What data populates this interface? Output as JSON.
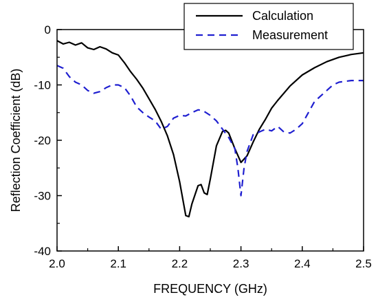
{
  "chart_data": {
    "type": "line",
    "title": "",
    "xlabel": "FREQUENCY (GHz)",
    "ylabel": "Reflection Coefficient (dB)",
    "xlim": [
      2.0,
      2.5
    ],
    "ylim": [
      -40,
      0
    ],
    "xticks": [
      2.0,
      2.1,
      2.2,
      2.3,
      2.4,
      2.5
    ],
    "xtick_labels": [
      "2.0",
      "2.1",
      "2.2",
      "2.3",
      "2.4",
      "2.5"
    ],
    "yticks": [
      0,
      -10,
      -20,
      -30,
      -40
    ],
    "ytick_labels": [
      "0",
      "-10",
      "-20",
      "-30",
      "-40"
    ],
    "grid": false,
    "legend_position": "top-right",
    "series": [
      {
        "name": "Calculation",
        "color": "#000000",
        "dash": "solid",
        "x": [
          2.0,
          2.01,
          2.02,
          2.03,
          2.04,
          2.05,
          2.06,
          2.07,
          2.08,
          2.09,
          2.1,
          2.11,
          2.12,
          2.13,
          2.14,
          2.15,
          2.16,
          2.17,
          2.18,
          2.19,
          2.2,
          2.21,
          2.215,
          2.22,
          2.23,
          2.235,
          2.24,
          2.245,
          2.25,
          2.26,
          2.27,
          2.275,
          2.28,
          2.29,
          2.3,
          2.31,
          2.32,
          2.33,
          2.34,
          2.35,
          2.36,
          2.38,
          2.4,
          2.42,
          2.44,
          2.46,
          2.48,
          2.5
        ],
        "y": [
          -2.0,
          -2.6,
          -2.3,
          -2.8,
          -2.4,
          -3.3,
          -3.6,
          -3.1,
          -3.5,
          -4.2,
          -4.6,
          -6.0,
          -7.6,
          -9.0,
          -10.6,
          -12.5,
          -14.4,
          -16.6,
          -19.2,
          -22.6,
          -27.5,
          -33.6,
          -33.8,
          -31.5,
          -28.2,
          -28.0,
          -29.5,
          -29.8,
          -27.0,
          -21.0,
          -18.4,
          -18.2,
          -18.7,
          -21.5,
          -24.0,
          -22.8,
          -20.3,
          -18.0,
          -16.2,
          -14.2,
          -12.8,
          -10.2,
          -8.2,
          -6.9,
          -5.8,
          -5.0,
          -4.5,
          -4.2
        ]
      },
      {
        "name": "Measurement",
        "color": "#1f1fd0",
        "dash": "dashed",
        "x": [
          2.0,
          2.01,
          2.02,
          2.03,
          2.04,
          2.05,
          2.06,
          2.07,
          2.08,
          2.09,
          2.1,
          2.11,
          2.12,
          2.13,
          2.14,
          2.15,
          2.16,
          2.17,
          2.18,
          2.19,
          2.2,
          2.21,
          2.22,
          2.23,
          2.235,
          2.24,
          2.25,
          2.26,
          2.27,
          2.28,
          2.29,
          2.295,
          2.3,
          2.305,
          2.31,
          2.32,
          2.33,
          2.34,
          2.35,
          2.36,
          2.37,
          2.38,
          2.39,
          2.4,
          2.41,
          2.42,
          2.43,
          2.44,
          2.45,
          2.46,
          2.48,
          2.5
        ],
        "y": [
          -6.5,
          -7.0,
          -8.5,
          -9.5,
          -10.0,
          -11.0,
          -11.5,
          -11.2,
          -10.5,
          -10.0,
          -10.0,
          -10.5,
          -12.0,
          -14.0,
          -15.0,
          -15.8,
          -16.5,
          -18.0,
          -17.5,
          -16.0,
          -15.5,
          -15.6,
          -15.0,
          -14.5,
          -14.6,
          -14.8,
          -15.5,
          -16.5,
          -18.0,
          -19.5,
          -21.5,
          -25.0,
          -30.0,
          -25.0,
          -22.0,
          -19.0,
          -18.5,
          -18.0,
          -18.3,
          -17.5,
          -18.5,
          -18.7,
          -18.0,
          -17.0,
          -15.0,
          -13.0,
          -12.0,
          -11.0,
          -10.0,
          -9.5,
          -9.2,
          -9.2
        ]
      }
    ]
  }
}
